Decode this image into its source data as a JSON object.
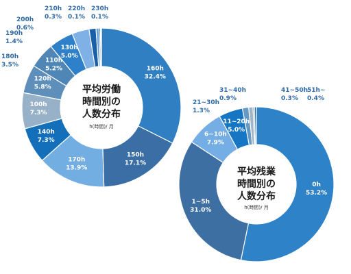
{
  "charts": [
    {
      "title_lines": [
        "平均労働",
        "時間別の",
        "人数分布"
      ],
      "unit": "h(時間)/ 月"
    },
    {
      "title_lines": [
        "平均残業",
        "時間別の",
        "人数分布"
      ],
      "unit": "h(時間)/ 月"
    }
  ],
  "chart_data": [
    {
      "type": "pie",
      "variant": "donut",
      "title": "平均労働時間別の人数分布",
      "unit": "h(時間)/ 月",
      "categories": [
        "160h",
        "150h",
        "170h",
        "140h",
        "100h",
        "120h",
        "110h",
        "130h",
        "180h",
        "190h",
        "200h",
        "210h",
        "220h",
        "230h"
      ],
      "labels": [
        "32.4%",
        "17.1%",
        "13.9%",
        "7.3%",
        "7.3%",
        "5.8%",
        "5.2%",
        "5.0%",
        "3.5%",
        "1.4%",
        "0.6%",
        "0.3%",
        "0.1%",
        "0.1%"
      ],
      "values": [
        32.4,
        17.1,
        13.9,
        7.3,
        7.3,
        5.8,
        5.2,
        5.0,
        3.5,
        1.4,
        0.6,
        0.3,
        0.1,
        0.1
      ],
      "label_placement": [
        "inside",
        "inside",
        "inside",
        "inside",
        "inside",
        "inside",
        "inside",
        "inside",
        "outside",
        "outside",
        "outside",
        "outside",
        "outside",
        "outside"
      ],
      "colors": [
        "#2f7fc2",
        "#3b6ea4",
        "#73aee3",
        "#136fba",
        "#97b2c8",
        "#5e8fba",
        "#4f86b5",
        "#2e80c8",
        "#7fb1e6",
        "#1a5fa8",
        "#6aa1d8",
        "#3a88d0",
        "#1d6fc6",
        "#2c6b93"
      ],
      "start": "top",
      "direction": "clockwise"
    },
    {
      "type": "pie",
      "variant": "donut",
      "title": "平均残業時間別の人数分布",
      "unit": "h(時間)/ 月",
      "categories": [
        "0h",
        "1~5h",
        "6~10h",
        "11~20h",
        "21~30h",
        "31~40h",
        "41~50h",
        "51h~"
      ],
      "labels": [
        "53.2%",
        "31.0%",
        "7.9%",
        "5.0%",
        "1.3%",
        "0.9%",
        "0.3%",
        "0.4%"
      ],
      "values": [
        53.2,
        31.0,
        7.9,
        5.0,
        1.3,
        0.9,
        0.3,
        0.4
      ],
      "label_placement": [
        "inside",
        "inside",
        "inside",
        "inside",
        "outside",
        "outside",
        "outside",
        "outside"
      ],
      "colors": [
        "#2e83c8",
        "#3e6fa3",
        "#75aee4",
        "#1676c4",
        "#6799c7",
        "#9fb6c8",
        "#40719c",
        "#2f6ea0"
      ],
      "start": "top",
      "direction": "clockwise"
    }
  ]
}
